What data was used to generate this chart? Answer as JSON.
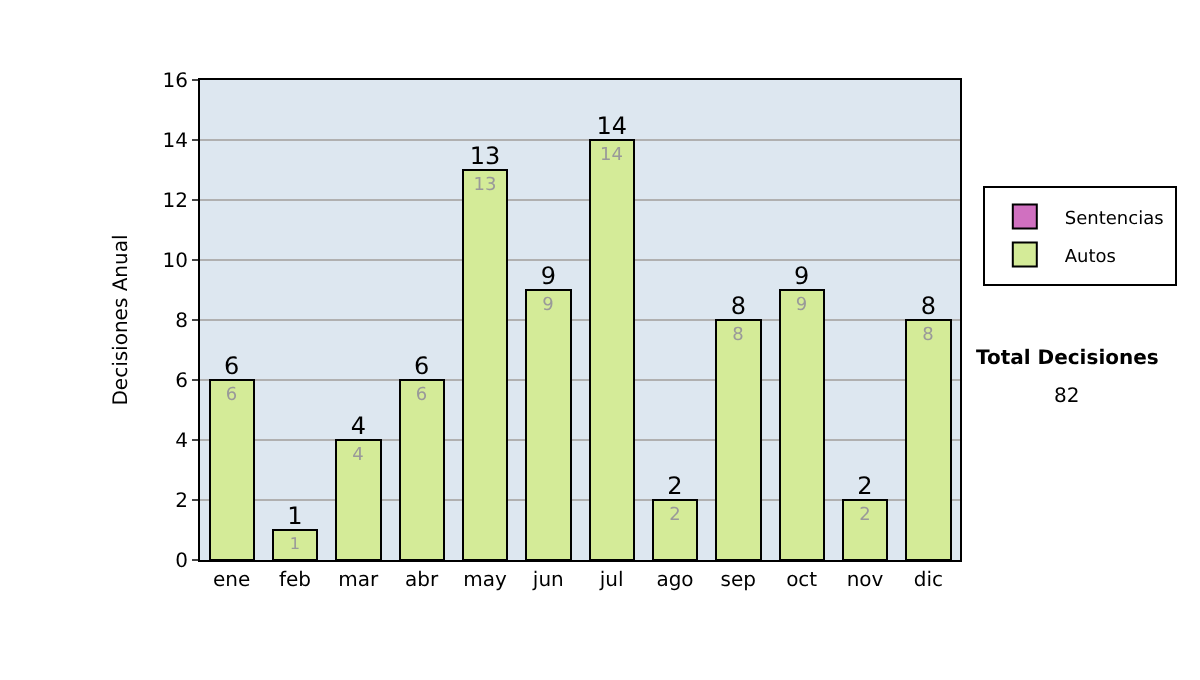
{
  "chart_data": {
    "type": "bar",
    "ylabel": "Decisiones Anual",
    "categories": [
      "ene",
      "feb",
      "mar",
      "abr",
      "may",
      "jun",
      "jul",
      "ago",
      "sep",
      "oct",
      "nov",
      "dic"
    ],
    "series": [
      {
        "name": "Sentencias",
        "color": "#d070c0",
        "values": [
          0,
          0,
          0,
          0,
          0,
          0,
          0,
          0,
          0,
          0,
          0,
          0
        ]
      },
      {
        "name": "Autos",
        "color": "#d4eb98",
        "values": [
          6,
          1,
          4,
          6,
          13,
          9,
          14,
          2,
          8,
          9,
          2,
          8
        ],
        "value_labels": [
          "6",
          "1",
          "4",
          "6",
          "13",
          "9",
          "14",
          "2",
          "8",
          "9",
          "2",
          "8"
        ]
      }
    ],
    "stacked": true,
    "totals": [
      "6",
      "1",
      "4",
      "6",
      "13",
      "9",
      "14",
      "2",
      "8",
      "9",
      "2",
      "8"
    ],
    "ylim": [
      0,
      16
    ],
    "yticks": [
      0,
      2,
      4,
      6,
      8,
      10,
      12,
      14,
      16
    ],
    "grid": "y",
    "legend": "right",
    "annotations": [
      "Total Decisiones",
      "82"
    ]
  }
}
